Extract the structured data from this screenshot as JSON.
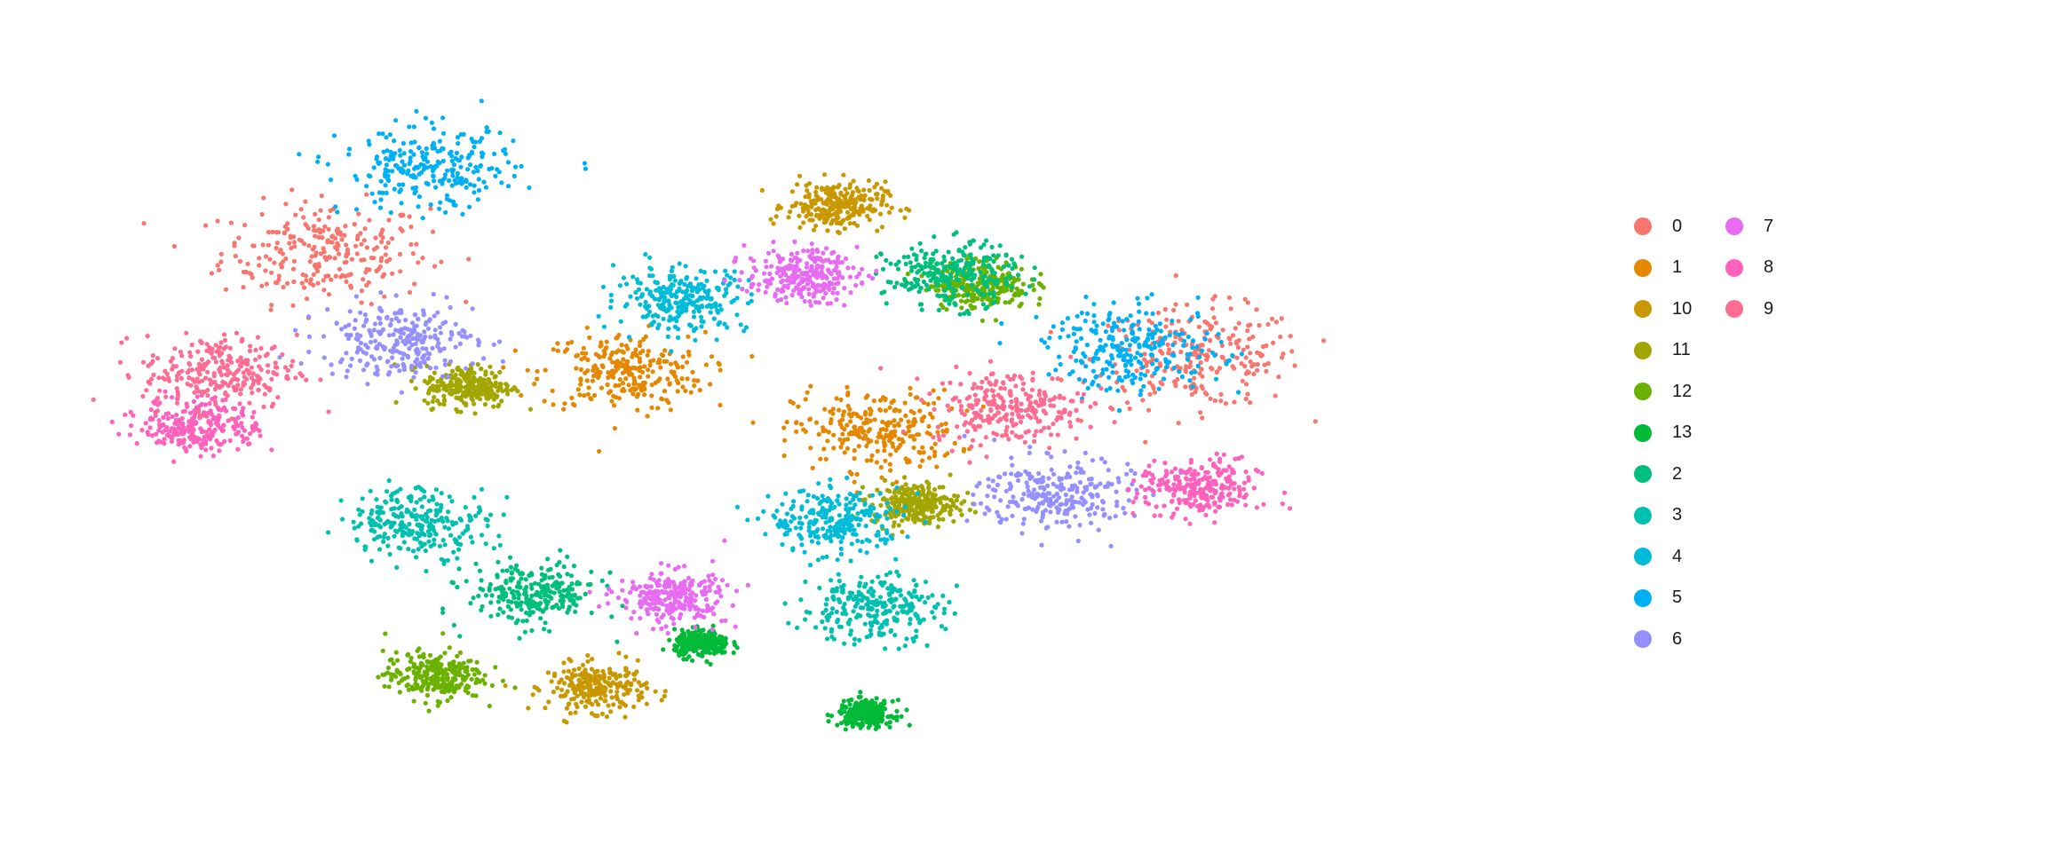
{
  "chart_data": {
    "type": "scatter",
    "title": "",
    "xlabel": "",
    "ylabel": "",
    "grid": false,
    "axes_visible": false,
    "legend_position": "right",
    "legend_columns": 2,
    "series": [
      {
        "name": "0",
        "color": "#F8766D",
        "centers": [
          [
            -10.5,
            7.6
          ],
          [
            7.1,
            4.0
          ]
        ]
      },
      {
        "name": "1",
        "color": "#E58700",
        "centers": [
          [
            -4.5,
            3.5
          ],
          [
            0.6,
            1.5
          ]
        ]
      },
      {
        "name": "10",
        "color": "#C99800",
        "centers": [
          [
            -5.0,
            -7.3
          ],
          [
            -0.2,
            9.2
          ]
        ]
      },
      {
        "name": "11",
        "color": "#A3A500",
        "centers": [
          [
            -7.6,
            3.0
          ],
          [
            1.4,
            -1.0
          ]
        ]
      },
      {
        "name": "12",
        "color": "#6BB100",
        "centers": [
          [
            -8.3,
            -6.9
          ],
          [
            2.7,
            6.5
          ]
        ]
      },
      {
        "name": "13",
        "color": "#00BA38",
        "centers": [
          [
            -2.9,
            -5.8
          ],
          [
            0.4,
            -8.2
          ]
        ]
      },
      {
        "name": "2",
        "color": "#00BF7D",
        "centers": [
          [
            -6.3,
            -4.1
          ],
          [
            2.1,
            6.8
          ]
        ]
      },
      {
        "name": "3",
        "color": "#00C0AF",
        "centers": [
          [
            -8.6,
            -1.6
          ],
          [
            0.5,
            -4.6
          ]
        ]
      },
      {
        "name": "4",
        "color": "#00BCD8",
        "centers": [
          [
            -3.3,
            6.0
          ],
          [
            -0.2,
            -1.6
          ]
        ]
      },
      {
        "name": "5",
        "color": "#00B0F6",
        "centers": [
          [
            -8.4,
            10.4
          ],
          [
            5.8,
            4.3
          ]
        ]
      },
      {
        "name": "6",
        "color": "#9590FF",
        "centers": [
          [
            -9.0,
            4.6
          ],
          [
            4.2,
            -0.7
          ]
        ]
      },
      {
        "name": "7",
        "color": "#E76BF3",
        "centers": [
          [
            -3.5,
            -4.2
          ],
          [
            -0.9,
            6.8
          ]
        ]
      },
      {
        "name": "8",
        "color": "#FF62BC",
        "centers": [
          [
            -13.0,
            1.7
          ],
          [
            7.1,
            -0.5
          ]
        ]
      },
      {
        "name": "9",
        "color": "#FF6C91",
        "centers": [
          [
            -12.6,
            3.5
          ],
          [
            3.3,
            2.3
          ]
        ]
      }
    ],
    "xlim": [
      -16.5,
      10.5
    ],
    "ylim": [
      -10.5,
      13.5
    ]
  }
}
